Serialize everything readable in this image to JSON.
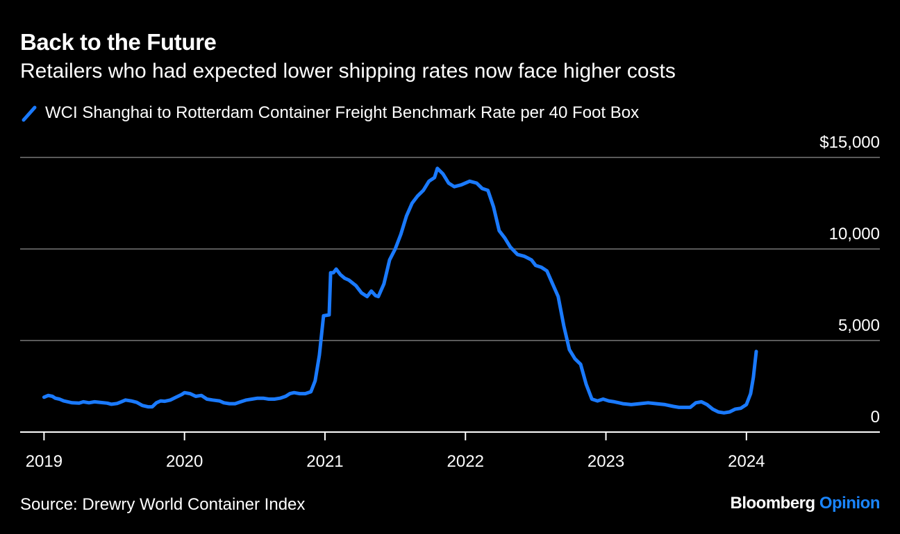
{
  "chart_data": {
    "type": "line",
    "title": "Back to the Future",
    "subtitle": "Retailers who had expected lower shipping rates now face higher costs",
    "series": [
      {
        "name": "WCI Shanghai to Rotterdam Container Freight Benchmark Rate per 40 Foot Box",
        "color": "#1a7aff",
        "points": [
          [
            2019.0,
            1900
          ],
          [
            2019.03,
            2000
          ],
          [
            2019.06,
            1950
          ],
          [
            2019.08,
            1850
          ],
          [
            2019.11,
            1800
          ],
          [
            2019.14,
            1700
          ],
          [
            2019.17,
            1650
          ],
          [
            2019.2,
            1600
          ],
          [
            2019.25,
            1580
          ],
          [
            2019.28,
            1650
          ],
          [
            2019.32,
            1600
          ],
          [
            2019.36,
            1650
          ],
          [
            2019.4,
            1620
          ],
          [
            2019.45,
            1580
          ],
          [
            2019.48,
            1520
          ],
          [
            2019.52,
            1560
          ],
          [
            2019.55,
            1650
          ],
          [
            2019.58,
            1750
          ],
          [
            2019.62,
            1700
          ],
          [
            2019.66,
            1620
          ],
          [
            2019.7,
            1450
          ],
          [
            2019.74,
            1380
          ],
          [
            2019.77,
            1380
          ],
          [
            2019.8,
            1600
          ],
          [
            2019.83,
            1700
          ],
          [
            2019.86,
            1680
          ],
          [
            2019.9,
            1750
          ],
          [
            2019.94,
            1900
          ],
          [
            2019.98,
            2050
          ],
          [
            2020.0,
            2150
          ],
          [
            2020.04,
            2100
          ],
          [
            2020.08,
            1950
          ],
          [
            2020.12,
            2000
          ],
          [
            2020.16,
            1800
          ],
          [
            2020.2,
            1750
          ],
          [
            2020.25,
            1700
          ],
          [
            2020.28,
            1600
          ],
          [
            2020.32,
            1550
          ],
          [
            2020.36,
            1550
          ],
          [
            2020.4,
            1650
          ],
          [
            2020.44,
            1750
          ],
          [
            2020.48,
            1800
          ],
          [
            2020.52,
            1850
          ],
          [
            2020.56,
            1850
          ],
          [
            2020.6,
            1800
          ],
          [
            2020.64,
            1800
          ],
          [
            2020.68,
            1850
          ],
          [
            2020.72,
            1950
          ],
          [
            2020.75,
            2100
          ],
          [
            2020.78,
            2150
          ],
          [
            2020.82,
            2100
          ],
          [
            2020.86,
            2100
          ],
          [
            2020.9,
            2200
          ],
          [
            2020.93,
            2800
          ],
          [
            2020.96,
            4200
          ],
          [
            2020.99,
            6350
          ],
          [
            2021.03,
            6400
          ],
          [
            2021.04,
            8700
          ],
          [
            2021.06,
            8700
          ],
          [
            2021.08,
            8900
          ],
          [
            2021.11,
            8600
          ],
          [
            2021.14,
            8400
          ],
          [
            2021.17,
            8300
          ],
          [
            2021.22,
            8000
          ],
          [
            2021.26,
            7600
          ],
          [
            2021.3,
            7400
          ],
          [
            2021.33,
            7700
          ],
          [
            2021.36,
            7450
          ],
          [
            2021.38,
            7400
          ],
          [
            2021.42,
            8100
          ],
          [
            2021.46,
            9400
          ],
          [
            2021.5,
            10000
          ],
          [
            2021.54,
            10800
          ],
          [
            2021.58,
            11800
          ],
          [
            2021.62,
            12500
          ],
          [
            2021.66,
            12900
          ],
          [
            2021.7,
            13200
          ],
          [
            2021.74,
            13700
          ],
          [
            2021.78,
            13900
          ],
          [
            2021.8,
            14400
          ],
          [
            2021.84,
            14100
          ],
          [
            2021.88,
            13600
          ],
          [
            2021.92,
            13400
          ],
          [
            2021.97,
            13500
          ],
          [
            2022.03,
            13700
          ],
          [
            2022.08,
            13600
          ],
          [
            2022.12,
            13300
          ],
          [
            2022.16,
            13200
          ],
          [
            2022.2,
            12300
          ],
          [
            2022.24,
            11000
          ],
          [
            2022.28,
            10600
          ],
          [
            2022.32,
            10100
          ],
          [
            2022.37,
            9700
          ],
          [
            2022.42,
            9600
          ],
          [
            2022.47,
            9400
          ],
          [
            2022.5,
            9100
          ],
          [
            2022.54,
            9000
          ],
          [
            2022.58,
            8800
          ],
          [
            2022.62,
            8100
          ],
          [
            2022.66,
            7400
          ],
          [
            2022.7,
            5800
          ],
          [
            2022.74,
            4500
          ],
          [
            2022.78,
            4000
          ],
          [
            2022.82,
            3700
          ],
          [
            2022.86,
            2600
          ],
          [
            2022.9,
            1800
          ],
          [
            2022.94,
            1700
          ],
          [
            2022.98,
            1800
          ],
          [
            2023.02,
            1700
          ],
          [
            2023.06,
            1650
          ],
          [
            2023.12,
            1550
          ],
          [
            2023.18,
            1500
          ],
          [
            2023.24,
            1550
          ],
          [
            2023.3,
            1600
          ],
          [
            2023.36,
            1550
          ],
          [
            2023.42,
            1500
          ],
          [
            2023.48,
            1400
          ],
          [
            2023.52,
            1350
          ],
          [
            2023.56,
            1350
          ],
          [
            2023.6,
            1350
          ],
          [
            2023.64,
            1600
          ],
          [
            2023.68,
            1650
          ],
          [
            2023.72,
            1500
          ],
          [
            2023.76,
            1250
          ],
          [
            2023.8,
            1100
          ],
          [
            2023.84,
            1050
          ],
          [
            2023.88,
            1100
          ],
          [
            2023.92,
            1250
          ],
          [
            2023.96,
            1300
          ],
          [
            2024.0,
            1500
          ],
          [
            2024.03,
            2100
          ],
          [
            2024.05,
            3000
          ],
          [
            2024.07,
            4400
          ]
        ]
      }
    ],
    "x_ticks": [
      "2019",
      "2020",
      "2021",
      "2022",
      "2023",
      "2024"
    ],
    "x_tick_values": [
      2019,
      2020,
      2021,
      2022,
      2023,
      2024
    ],
    "xlim": [
      2018.83,
      2024.95
    ],
    "y_ticks": [
      0,
      5000,
      10000,
      15000
    ],
    "y_tick_labels": [
      "0",
      "5,000",
      "10,000",
      "$15,000"
    ],
    "ylim": [
      0,
      15000
    ],
    "grid": true,
    "legend_position": "top-left"
  },
  "source": "Source: Drewry World Container Index",
  "brand": {
    "name": "Bloomberg",
    "suffix": "Opinion"
  },
  "colors": {
    "background": "#000000",
    "line": "#1a7aff",
    "grid": "#5a5a5a",
    "brand_accent": "#1a85ff"
  }
}
